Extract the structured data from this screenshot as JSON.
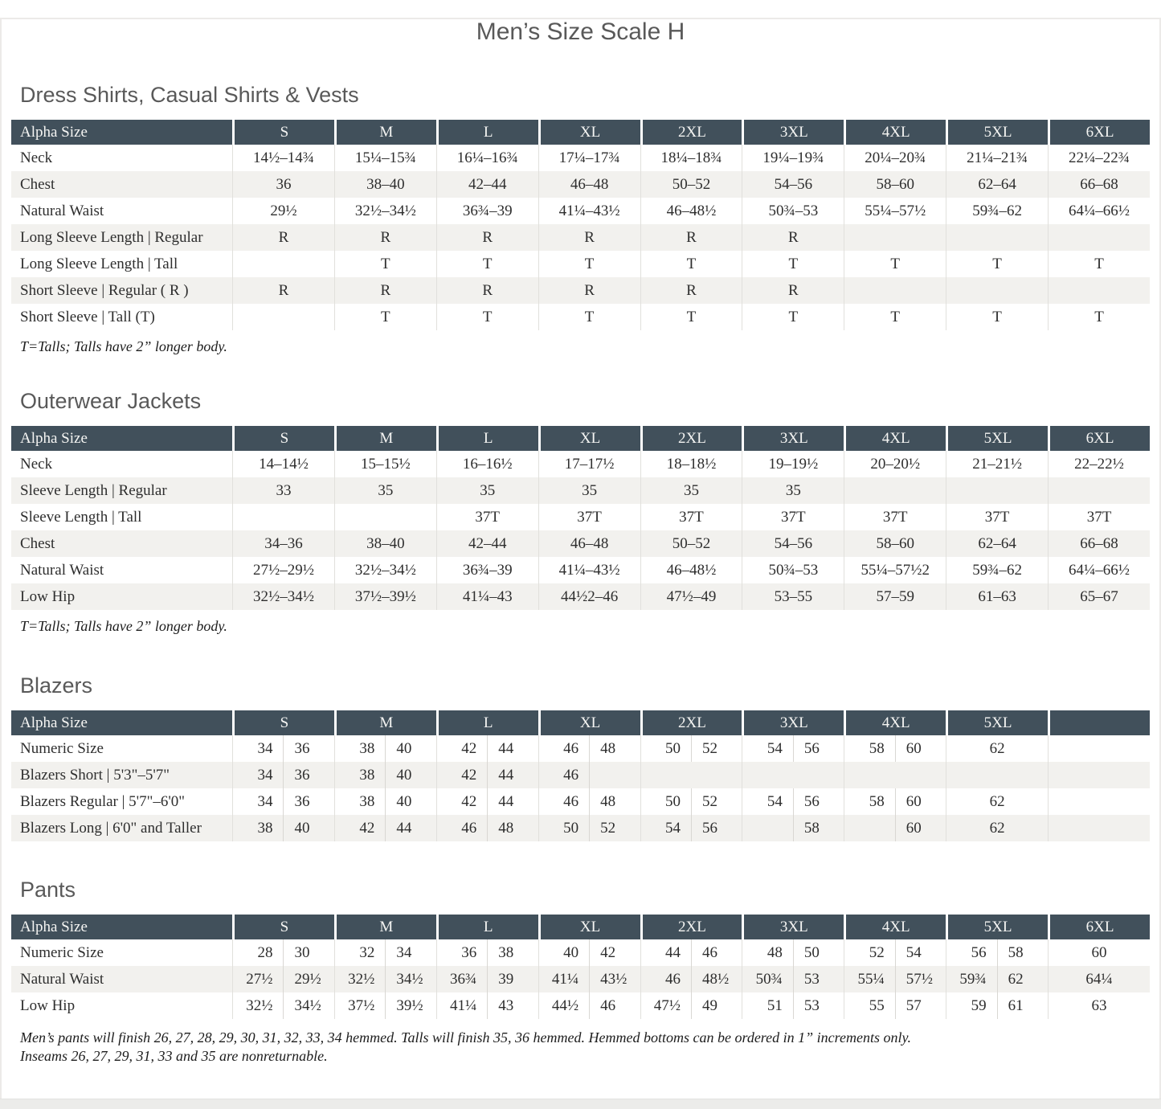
{
  "page": {
    "title": "Men’s Size Scale H"
  },
  "tables": [
    {
      "section": "Dress Shirts, Casual Shirts & Vests",
      "split": false,
      "header": [
        "Alpha Size",
        "S",
        "M",
        "L",
        "XL",
        "2XL",
        "3XL",
        "4XL",
        "5XL",
        "6XL"
      ],
      "rows": [
        {
          "label": "Neck",
          "cells": [
            "14½–14¾",
            "15¼–15¾",
            "16¼–16¾",
            "17¼–17¾",
            "18¼–18¾",
            "19¼–19¾",
            "20¼–20¾",
            "21¼–21¾",
            "22¼–22¾"
          ]
        },
        {
          "label": "Chest",
          "cells": [
            "36",
            "38–40",
            "42–44",
            "46–48",
            "50–52",
            "54–56",
            "58–60",
            "62–64",
            "66–68"
          ]
        },
        {
          "label": "Natural Waist",
          "cells": [
            "29½",
            "32½–34½",
            "36¾–39",
            "41¼–43½",
            "46–48½",
            "50¾–53",
            "55¼–57½",
            "59¾–62",
            "64¼–66½"
          ]
        },
        {
          "label": "Long Sleeve Length | Regular",
          "cells": [
            "R",
            "R",
            "R",
            "R",
            "R",
            "R",
            "",
            "",
            ""
          ]
        },
        {
          "label": "Long Sleeve Length | Tall",
          "cells": [
            "",
            "T",
            "T",
            "T",
            "T",
            "T",
            "T",
            "T",
            "T"
          ]
        },
        {
          "label": "Short Sleeve | Regular ( R )",
          "cells": [
            "R",
            "R",
            "R",
            "R",
            "R",
            "R",
            "",
            "",
            ""
          ]
        },
        {
          "label": "Short Sleeve | Tall (T)",
          "cells": [
            "",
            "T",
            "T",
            "T",
            "T",
            "T",
            "T",
            "T",
            "T"
          ]
        }
      ],
      "footnote": "T=Talls; Talls have 2” longer body."
    },
    {
      "section": "Outerwear Jackets",
      "split": false,
      "header": [
        "Alpha Size",
        "S",
        "M",
        "L",
        "XL",
        "2XL",
        "3XL",
        "4XL",
        "5XL",
        "6XL"
      ],
      "rows": [
        {
          "label": "Neck",
          "cells": [
            "14–14½",
            "15–15½",
            "16–16½",
            "17–17½",
            "18–18½",
            "19–19½",
            "20–20½",
            "21–21½",
            "22–22½"
          ]
        },
        {
          "label": "Sleeve Length | Regular",
          "cells": [
            "33",
            "35",
            "35",
            "35",
            "35",
            "35",
            "",
            "",
            ""
          ]
        },
        {
          "label": "Sleeve Length | Tall",
          "cells": [
            "",
            "",
            "37T",
            "37T",
            "37T",
            "37T",
            "37T",
            "37T",
            "37T"
          ]
        },
        {
          "label": "Chest",
          "cells": [
            "34–36",
            "38–40",
            "42–44",
            "46–48",
            "50–52",
            "54–56",
            "58–60",
            "62–64",
            "66–68"
          ]
        },
        {
          "label": "Natural Waist",
          "cells": [
            "27½–29½",
            "32½–34½",
            "36¾–39",
            "41¼–43½",
            "46–48½",
            "50¾–53",
            "55¼–57½2",
            "59¾–62",
            "64¼–66½"
          ]
        },
        {
          "label": "Low Hip",
          "cells": [
            "32½–34½",
            "37½–39½",
            "41¼–43",
            "44½2–46",
            "47½–49",
            "53–55",
            "57–59",
            "61–63",
            "65–67"
          ]
        }
      ],
      "footnote": "T=Talls; Talls have 2” longer body."
    },
    {
      "section": "Blazers",
      "split": true,
      "header": [
        "Alpha Size",
        "S",
        "M",
        "L",
        "XL",
        "2XL",
        "3XL",
        "4XL",
        "5XL",
        ""
      ],
      "rows": [
        {
          "label": "Numeric Size",
          "cells": [
            "34|36",
            "38|40",
            "42|44",
            "46|48",
            "50|52",
            "54|56",
            "58|60",
            "62",
            ""
          ]
        },
        {
          "label": "Blazers Short | 5'3\"–5'7\"",
          "cells": [
            "34|36",
            "38|40",
            "42|44",
            "46|",
            "",
            "",
            "",
            "",
            ""
          ]
        },
        {
          "label": "Blazers Regular | 5'7\"–6'0\"",
          "cells": [
            "34|36",
            "38|40",
            "42|44",
            "46|48",
            "50|52",
            "54|56",
            "58|60",
            "62",
            ""
          ]
        },
        {
          "label": "Blazers Long | 6'0\" and Taller",
          "cells": [
            "38|40",
            "42|44",
            "46|48",
            "50|52",
            "54|56",
            "|58",
            "|60",
            "62",
            ""
          ]
        }
      ],
      "footnote": ""
    },
    {
      "section": "Pants",
      "split": true,
      "header": [
        "Alpha Size",
        "S",
        "M",
        "L",
        "XL",
        "2XL",
        "3XL",
        "4XL",
        "5XL",
        "6XL"
      ],
      "rows": [
        {
          "label": "Numeric Size",
          "cells": [
            "28|30",
            "32|34",
            "36|38",
            "40|42",
            "44|46",
            "48|50",
            "52|54",
            "56|58",
            "60"
          ]
        },
        {
          "label": "Natural Waist",
          "cells": [
            "27½|29½",
            "32½|34½",
            "36¾|39",
            "41¼|43½",
            "46|48½",
            "50¾|53",
            "55¼|57½",
            "59¾|62",
            "64¼"
          ]
        },
        {
          "label": "Low Hip",
          "cells": [
            "32½|34½",
            "37½|39½",
            "41¼|43",
            "44½|46",
            "47½|49",
            "51|53",
            "55|57",
            "59|61",
            "63"
          ]
        }
      ],
      "footnote": ""
    }
  ],
  "footer": [
    "Men’s pants will finish 26, 27, 28, 29, 30, 31, 32, 33, 34 hemmed. Talls will finish 35, 36 hemmed. Hemmed bottoms can be ordered in 1” increments only.",
    "Inseams 26, 27, 29, 31, 33 and 35 are nonreturnable."
  ],
  "colors": {
    "header_bg": "#41505b",
    "stripe": "#f2f1ee",
    "heading_text": "#595959",
    "body_text": "#2e2e2e"
  }
}
